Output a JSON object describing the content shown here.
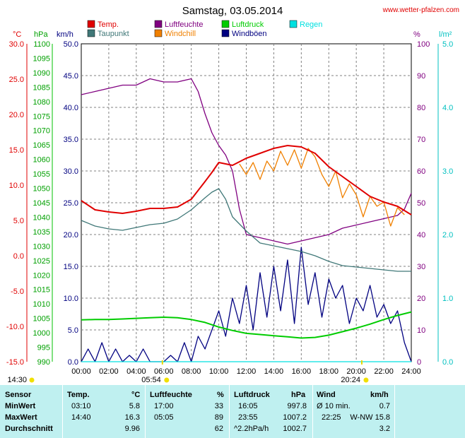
{
  "title": "Samstag, 03.05.2014",
  "site": "www.wetter-pfalzen.com",
  "units": {
    "temp": "°C",
    "press": "hPa",
    "wind": "km/h",
    "hum": "%",
    "rain": "l/m²"
  },
  "legend": [
    {
      "label": "Temp.",
      "color": "#e00000"
    },
    {
      "label": "Luftfeuchte",
      "color": "#800080"
    },
    {
      "label": "Luftdruck",
      "color": "#00cc00"
    },
    {
      "label": "Regen",
      "color": "#00e0e0"
    },
    {
      "label": "Taupunkt",
      "color": "#407878"
    },
    {
      "label": "Windchill",
      "color": "#f08000"
    },
    {
      "label": "Windböen",
      "color": "#000080"
    }
  ],
  "sun": {
    "sunrise": "05:54",
    "sunset": "20:24",
    "daylength": "14:30"
  },
  "chart_data": {
    "type": "line",
    "x_ticks": [
      "00:00",
      "02:00",
      "04:00",
      "06:00",
      "08:00",
      "10:00",
      "12:00",
      "14:00",
      "16:00",
      "18:00",
      "20:00",
      "22:00",
      "24:00"
    ],
    "axes": {
      "temp": {
        "min": -15,
        "max": 30,
        "ticks": [
          "30.0",
          "25.0",
          "20.0",
          "15.0",
          "10.0",
          "5.0",
          "0.0",
          "-5.0",
          "-10.0",
          "-15.0"
        ]
      },
      "press": {
        "min": 990,
        "max": 1100,
        "ticks": [
          "1100",
          "1095",
          "1090",
          "1085",
          "1080",
          "1075",
          "1070",
          "1065",
          "1060",
          "1055",
          "1050",
          "1045",
          "1040",
          "1035",
          "1030",
          "1025",
          "1020",
          "1015",
          "1010",
          "1005",
          "1000",
          "995",
          "990"
        ]
      },
      "wind": {
        "min": 0,
        "max": 50,
        "ticks": [
          "50.0",
          "45.0",
          "40.0",
          "35.0",
          "30.0",
          "25.0",
          "20.0",
          "15.0",
          "10.0",
          "5.0",
          "0.0"
        ]
      },
      "hum": {
        "min": 0,
        "max": 100,
        "ticks": [
          "100",
          "90",
          "80",
          "70",
          "60",
          "50",
          "40",
          "30",
          "20",
          "10",
          "0"
        ]
      },
      "rain": {
        "min": 0,
        "max": 5,
        "ticks": [
          "5.0",
          "4.0",
          "3.0",
          "2.0",
          "1.0",
          "0.0"
        ]
      }
    },
    "series": [
      {
        "name": "Temp.",
        "axis": "temp",
        "color": "#e00000",
        "x": [
          0,
          1,
          2,
          3,
          4,
          5,
          6,
          7,
          8,
          9,
          9.5,
          10,
          10.5,
          11,
          12,
          13,
          14,
          15,
          16,
          17,
          18,
          19,
          20,
          21,
          22,
          23,
          24
        ],
        "y": [
          7.8,
          6.5,
          6.2,
          6.0,
          6.3,
          6.7,
          6.7,
          6.9,
          8.0,
          10.5,
          11.8,
          13.2,
          13.0,
          12.8,
          13.8,
          14.5,
          15.2,
          15.6,
          15.4,
          14.5,
          12.6,
          11.2,
          9.8,
          8.4,
          7.6,
          7.0,
          5.8
        ]
      },
      {
        "name": "Taupunkt",
        "axis": "temp",
        "color": "#407878",
        "x": [
          0,
          1,
          2,
          3,
          4,
          5,
          6,
          7,
          8,
          9,
          9.5,
          10,
          10.5,
          11,
          12,
          13,
          14,
          15,
          16,
          17,
          18,
          19,
          20,
          21,
          22,
          23,
          24
        ],
        "y": [
          5.0,
          4.2,
          3.8,
          3.6,
          4.0,
          4.4,
          4.6,
          5.2,
          6.5,
          8.2,
          9.0,
          9.5,
          8.0,
          5.5,
          3.5,
          1.8,
          1.4,
          1.0,
          0.6,
          0.0,
          -0.8,
          -1.4,
          -1.6,
          -1.8,
          -2.0,
          -2.2,
          -2.2
        ]
      },
      {
        "name": "Windchill",
        "axis": "temp",
        "color": "#f08000",
        "x": [
          11.5,
          12,
          12.5,
          13,
          13.5,
          14,
          14.5,
          15,
          15.5,
          16,
          16.5,
          17,
          17.5,
          18,
          18.5,
          19,
          19.5,
          20,
          20.5,
          21,
          21.5,
          22,
          22.5,
          23,
          23.5
        ],
        "y": [
          13.0,
          11.5,
          13.2,
          10.8,
          13.4,
          12.0,
          14.8,
          12.8,
          15.0,
          12.4,
          15.2,
          14.0,
          11.5,
          9.8,
          12.0,
          8.2,
          10.2,
          8.6,
          5.5,
          8.4,
          7.0,
          7.6,
          4.2,
          6.8,
          5.8
        ]
      },
      {
        "name": "Luftfeuchte",
        "axis": "hum",
        "color": "#800080",
        "x": [
          0,
          1,
          2,
          3,
          4,
          4.5,
          5,
          6,
          7,
          8,
          8.5,
          9,
          9.5,
          10,
          10.5,
          11,
          11.5,
          12,
          13,
          14,
          15,
          16,
          17,
          18,
          19,
          20,
          21,
          22,
          23,
          23.5,
          24
        ],
        "y": [
          84,
          85,
          86,
          87,
          87,
          88,
          89,
          88,
          88,
          89,
          85,
          78,
          72,
          68,
          65,
          60,
          48,
          40,
          39,
          38,
          37,
          38,
          39,
          40,
          42,
          43,
          44,
          45,
          46,
          48,
          53
        ]
      },
      {
        "name": "Luftdruck",
        "axis": "press",
        "color": "#00cc00",
        "x": [
          0,
          1,
          2,
          3,
          4,
          5,
          6,
          7,
          8,
          9,
          10,
          11,
          12,
          13,
          14,
          15,
          16,
          17,
          18,
          19,
          20,
          21,
          22,
          23,
          24
        ],
        "y": [
          1004.5,
          1004.6,
          1004.6,
          1004.8,
          1005.0,
          1005.2,
          1005.4,
          1005.2,
          1004.6,
          1003.6,
          1002.0,
          1000.8,
          999.8,
          999.4,
          999.0,
          998.6,
          998.2,
          998.4,
          999.2,
          1000.4,
          1001.6,
          1003.0,
          1004.6,
          1006.0,
          1007.2
        ]
      },
      {
        "name": "Windböen",
        "axis": "wind",
        "color": "#000080",
        "x": [
          0,
          0.5,
          1,
          1.5,
          2,
          2.5,
          3,
          3.5,
          4,
          4.5,
          5,
          5.5,
          6,
          6.5,
          7,
          7.5,
          8,
          8.5,
          9,
          9.5,
          10,
          10.5,
          11,
          11.5,
          12,
          12.5,
          13,
          13.5,
          14,
          14.5,
          15,
          15.5,
          16,
          16.5,
          17,
          17.5,
          18,
          18.5,
          19,
          19.5,
          20,
          20.5,
          21,
          21.5,
          22,
          22.5,
          23,
          23.5,
          24
        ],
        "y": [
          0,
          2,
          0,
          3,
          0,
          2,
          0,
          1,
          0,
          2,
          0,
          0,
          0,
          1,
          0,
          3,
          0,
          4,
          2,
          5,
          8,
          4,
          10,
          6,
          12,
          5,
          14,
          7,
          15,
          8,
          16,
          6,
          18,
          9,
          14,
          7,
          13,
          10,
          12,
          6,
          10,
          8,
          12,
          7,
          9,
          6,
          8,
          3,
          0
        ]
      },
      {
        "name": "Regen",
        "axis": "rain",
        "color": "#00e0e0",
        "x": [
          0,
          24
        ],
        "y": [
          0,
          0
        ]
      }
    ]
  },
  "stats": {
    "headers": {
      "sensor": "Sensor",
      "temp": "Temp.",
      "temp_unit": "°C",
      "hum": "Luftfeuchte",
      "hum_unit": "%",
      "press": "Luftdruck",
      "press_unit": "hPa",
      "wind": "Wind",
      "wind_unit": "km/h"
    },
    "rows": [
      {
        "label": "MinWert",
        "t_time": "03:10",
        "t_val": "5.8",
        "h_time": "17:00",
        "h_val": "33",
        "p_time": "16:05",
        "p_val": "997.8",
        "w_time": "Ø 10 min.",
        "w_val": "0.7"
      },
      {
        "label": "MaxWert",
        "t_time": "14:40",
        "t_val": "16.3",
        "h_time": "05:05",
        "h_val": "89",
        "p_time": "23:55",
        "p_val": "1007.2",
        "w_time": "22:25",
        "w_val": "W-NW 15.8"
      },
      {
        "label": "Durchschnitt",
        "t_time": "",
        "t_val": "9.96",
        "h_time": "",
        "h_val": "62",
        "p_time": "^2.2hPa/h",
        "p_val": "1002.7",
        "w_time": "",
        "w_val": "3.2"
      }
    ]
  }
}
